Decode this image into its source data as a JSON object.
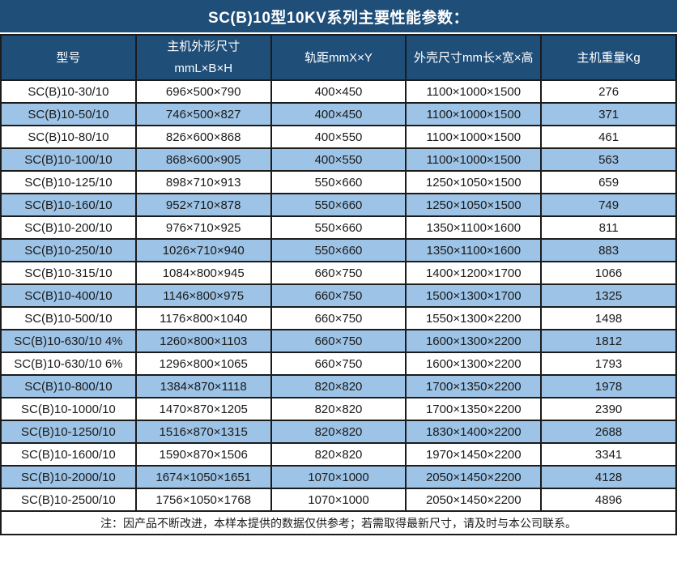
{
  "title": "SC(B)10型10KV系列主要性能参数：",
  "colors": {
    "header_bg": "#1F4E79",
    "stripe_bg": "#9DC3E6",
    "row_bg": "#FFFFFF",
    "border": "#1B1B1B",
    "header_text": "#FFFFFF",
    "body_text": "#1A1A1A"
  },
  "table": {
    "columns": [
      "型号",
      "主机外形尺寸\nmmL×B×H",
      "轨距mmX×Y",
      "外壳尺寸mm长×宽×高",
      "主机重量Kg"
    ],
    "rows": [
      [
        "SC(B)10-30/10",
        "696×500×790",
        "400×450",
        "1100×1000×1500",
        "276"
      ],
      [
        "SC(B)10-50/10",
        "746×500×827",
        "400×450",
        "1100×1000×1500",
        "371"
      ],
      [
        "SC(B)10-80/10",
        "826×600×868",
        "400×550",
        "1100×1000×1500",
        "461"
      ],
      [
        "SC(B)10-100/10",
        "868×600×905",
        "400×550",
        "1100×1000×1500",
        "563"
      ],
      [
        "SC(B)10-125/10",
        "898×710×913",
        "550×660",
        "1250×1050×1500",
        "659"
      ],
      [
        "SC(B)10-160/10",
        "952×710×878",
        "550×660",
        "1250×1050×1500",
        "749"
      ],
      [
        "SC(B)10-200/10",
        "976×710×925",
        "550×660",
        "1350×1100×1600",
        "811"
      ],
      [
        "SC(B)10-250/10",
        "1026×710×940",
        "550×660",
        "1350×1100×1600",
        "883"
      ],
      [
        "SC(B)10-315/10",
        "1084×800×945",
        "660×750",
        "1400×1200×1700",
        "1066"
      ],
      [
        "SC(B)10-400/10",
        "1146×800×975",
        "660×750",
        "1500×1300×1700",
        "1325"
      ],
      [
        "SC(B)10-500/10",
        "1176×800×1040",
        "660×750",
        "1550×1300×2200",
        "1498"
      ],
      [
        "SC(B)10-630/10 4%",
        "1260×800×1103",
        "660×750",
        "1600×1300×2200",
        "1812"
      ],
      [
        "SC(B)10-630/10 6%",
        "1296×800×1065",
        "660×750",
        "1600×1300×2200",
        "1793"
      ],
      [
        "SC(B)10-800/10",
        "1384×870×1118",
        "820×820",
        "1700×1350×2200",
        "1978"
      ],
      [
        "SC(B)10-1000/10",
        "1470×870×1205",
        "820×820",
        "1700×1350×2200",
        "2390"
      ],
      [
        "SC(B)10-1250/10",
        "1516×870×1315",
        "820×820",
        "1830×1400×2200",
        "2688"
      ],
      [
        "SC(B)10-1600/10",
        "1590×870×1506",
        "820×820",
        "1970×1450×2200",
        "3341"
      ],
      [
        "SC(B)10-2000/10",
        "1674×1050×1651",
        "1070×1000",
        "2050×1450×2200",
        "4128"
      ],
      [
        "SC(B)10-2500/10",
        "1756×1050×1768",
        "1070×1000",
        "2050×1450×2200",
        "4896"
      ]
    ]
  },
  "footer_note": "注：因产品不断改进，本样本提供的数据仅供参考；若需取得最新尺寸，请及时与本公司联系。"
}
